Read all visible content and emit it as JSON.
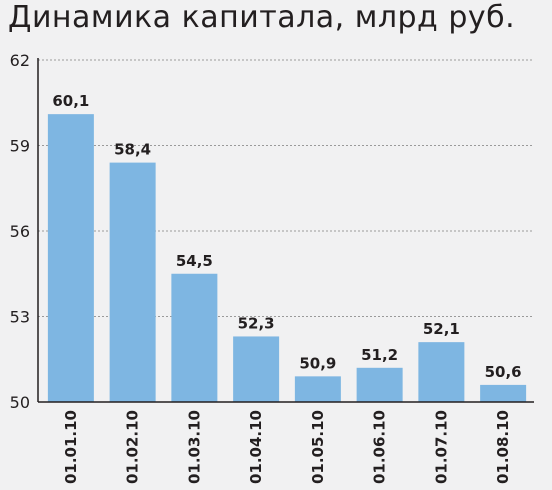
{
  "chart_data": {
    "type": "bar",
    "title": "Динамика капитала, млрд руб.",
    "xlabel": "",
    "ylabel": "",
    "categories": [
      "01.01.10",
      "01.02.10",
      "01.03.10",
      "01.04.10",
      "01.05.10",
      "01.06.10",
      "01.07.10",
      "01.08.10"
    ],
    "values": [
      60.1,
      58.4,
      54.5,
      52.3,
      50.9,
      51.2,
      52.1,
      50.6
    ],
    "data_labels": [
      "60,1",
      "58,4",
      "54,5",
      "52,3",
      "50,9",
      "51,2",
      "52,1",
      "50,6"
    ],
    "ylim": [
      50,
      62
    ],
    "yticks": [
      50,
      53,
      56,
      59,
      62
    ],
    "grid": "horizontal dashed",
    "legend": "none",
    "colors": {
      "bar": "#7eb6e2",
      "background": "#f1f1f2",
      "text": "#231f20",
      "grid": "#9a9a9a",
      "axis": "#231f20"
    }
  }
}
